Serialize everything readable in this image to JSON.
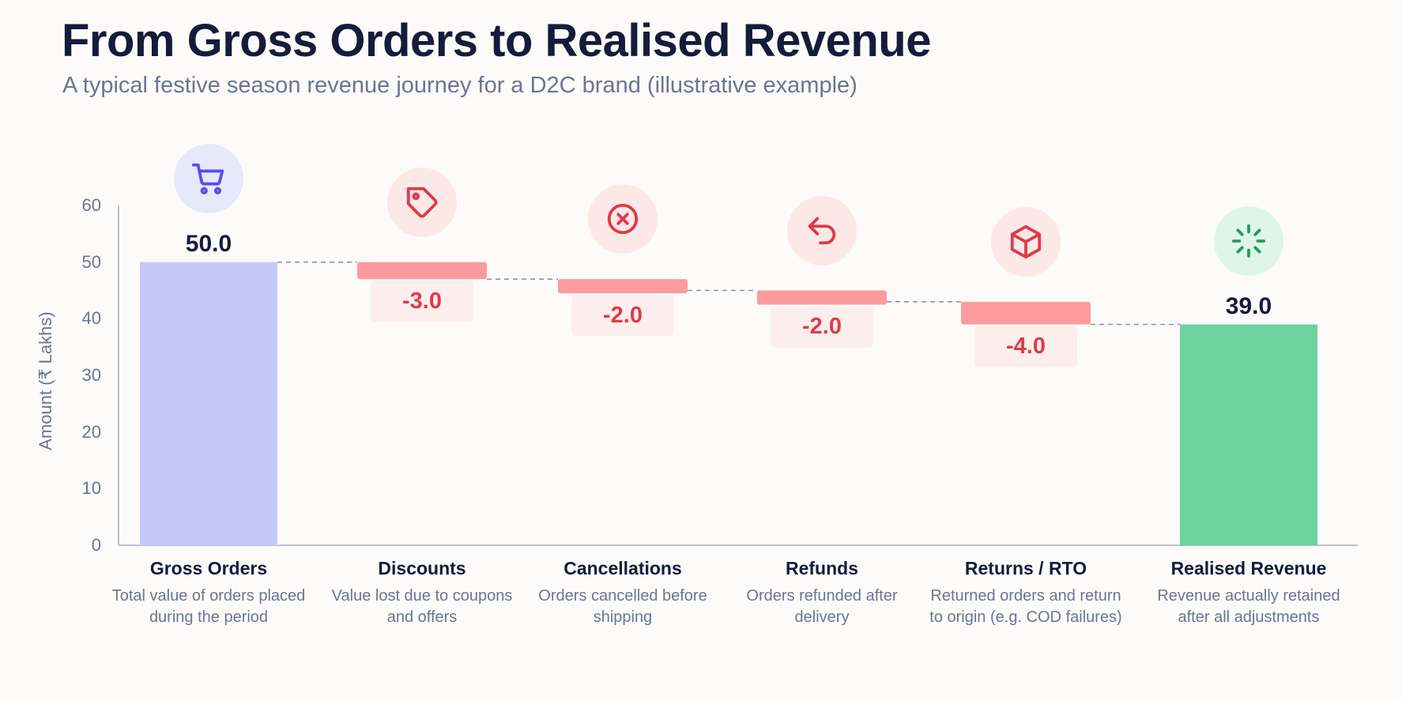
{
  "title": "From Gross Orders to Realised Revenue",
  "subtitle": "A typical festive season revenue journey for a D2C brand (illustrative example)",
  "colors": {
    "total_start": "#c5c9fa",
    "total_end": "#6dd39e",
    "decrease": "#fc9a9d",
    "decrease_text": "#df3a48",
    "connector": "#8a93ae",
    "axis": "#a8aec0"
  },
  "chart_data": {
    "type": "bar",
    "subtype": "waterfall",
    "ylabel": "Amount (₹ Lakhs)",
    "ylim": [
      0,
      60
    ],
    "yticks": [
      0,
      10,
      20,
      30,
      40,
      50,
      60
    ],
    "grid": false,
    "categories": [
      {
        "name": "Gross Orders",
        "description": "Total value of orders placed during the period",
        "kind": "total",
        "value": 50.0,
        "label": "50.0",
        "icon": "cart-icon"
      },
      {
        "name": "Discounts",
        "description": "Value lost due to coupons and offers",
        "kind": "decrease",
        "value": -3.0,
        "label": "-3.0",
        "icon": "tag-icon"
      },
      {
        "name": "Cancellations",
        "description": "Orders cancelled before shipping",
        "kind": "decrease",
        "value": -2.0,
        "label": "-2.0",
        "icon": "x-circle-icon"
      },
      {
        "name": "Refunds",
        "description": "Orders refunded after delivery",
        "kind": "decrease",
        "value": -2.0,
        "label": "-2.0",
        "icon": "undo-icon"
      },
      {
        "name": "Returns / RTO",
        "description": "Returned orders and return to origin (e.g. COD failures)",
        "kind": "decrease",
        "value": -4.0,
        "label": "-4.0",
        "icon": "box-icon"
      },
      {
        "name": "Realised Revenue",
        "description": "Revenue actually retained after all adjustments",
        "kind": "total",
        "value": 39.0,
        "label": "39.0",
        "icon": "sparkle-icon"
      }
    ]
  }
}
